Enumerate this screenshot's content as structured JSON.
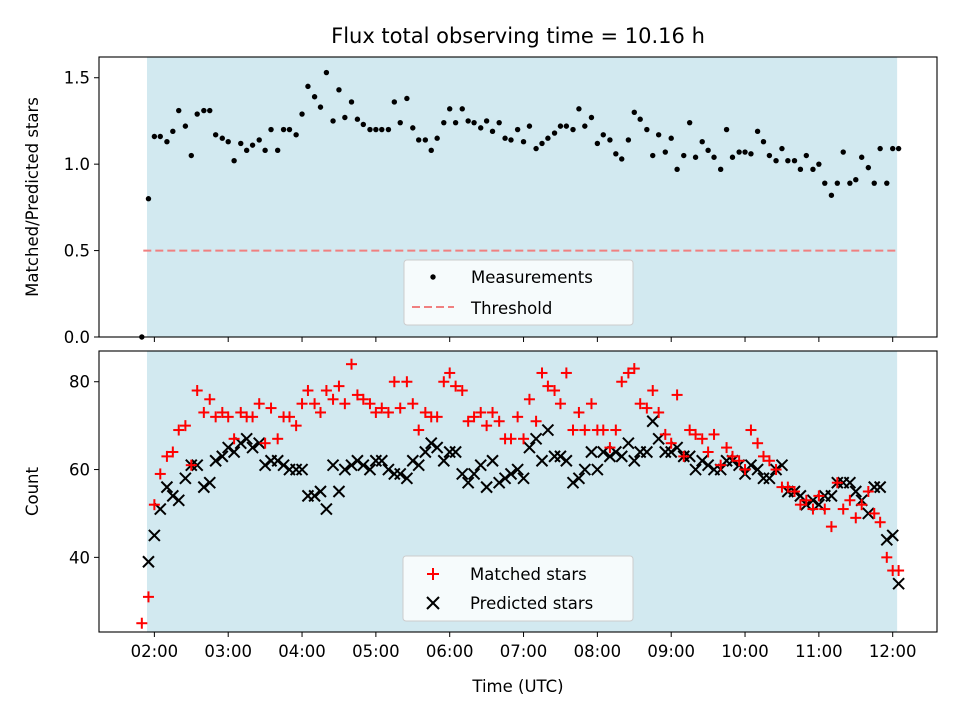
{
  "colors": {
    "shade": "#d2e9f0",
    "measurement": "#000000",
    "threshold": "#f08080",
    "matched": "#ff0000",
    "predicted": "#000000"
  },
  "chart_data": [
    {
      "type": "scatter",
      "title": "Flux total observing time = 10.16 h",
      "ylabel": "Matched/Predicted stars",
      "xlabel": "",
      "ylim": [
        0,
        1.62
      ],
      "xlim": [
        1.25,
        12.6
      ],
      "yticks": [
        0.0,
        0.5,
        1.0,
        1.5
      ],
      "ytick_labels": [
        "0.0",
        "0.5",
        "1.0",
        "1.5"
      ],
      "shaded_span": [
        1.9,
        12.06
      ],
      "threshold": {
        "name": "Threshold",
        "value": 0.5,
        "x": [
          1.85,
          12.05
        ]
      },
      "legend": [
        "Measurements",
        "Threshold"
      ],
      "legend_position": "lower center",
      "series": [
        {
          "name": "Measurements",
          "x": [
            1.83,
            1.92,
            2.0,
            2.08,
            2.17,
            2.25,
            2.33,
            2.42,
            2.5,
            2.58,
            2.67,
            2.75,
            2.83,
            2.92,
            3.0,
            3.08,
            3.17,
            3.25,
            3.33,
            3.42,
            3.5,
            3.58,
            3.67,
            3.75,
            3.83,
            3.92,
            4.0,
            4.08,
            4.17,
            4.25,
            4.33,
            4.42,
            4.5,
            4.58,
            4.67,
            4.75,
            4.83,
            4.92,
            5.0,
            5.08,
            5.17,
            5.25,
            5.33,
            5.42,
            5.5,
            5.58,
            5.67,
            5.75,
            5.83,
            5.92,
            6.0,
            6.08,
            6.17,
            6.25,
            6.33,
            6.42,
            6.5,
            6.58,
            6.67,
            6.75,
            6.83,
            6.92,
            7.0,
            7.08,
            7.17,
            7.25,
            7.33,
            7.42,
            7.5,
            7.58,
            7.67,
            7.75,
            7.83,
            7.92,
            8.0,
            8.08,
            8.17,
            8.25,
            8.33,
            8.42,
            8.5,
            8.58,
            8.67,
            8.75,
            8.83,
            8.92,
            9.0,
            9.08,
            9.17,
            9.25,
            9.33,
            9.42,
            9.5,
            9.58,
            9.67,
            9.75,
            9.83,
            9.92,
            10.0,
            10.08,
            10.17,
            10.25,
            10.33,
            10.42,
            10.5,
            10.58,
            10.67,
            10.75,
            10.83,
            10.92,
            11.0,
            11.08,
            11.17,
            11.25,
            11.33,
            11.42,
            11.5,
            11.58,
            11.67,
            11.75,
            11.83,
            11.92,
            12.0,
            12.08
          ],
          "values": [
            0.0,
            0.8,
            1.16,
            1.16,
            1.13,
            1.19,
            1.31,
            1.22,
            1.05,
            1.29,
            1.31,
            1.31,
            1.17,
            1.15,
            1.13,
            1.02,
            1.12,
            1.08,
            1.11,
            1.14,
            1.08,
            1.2,
            1.08,
            1.2,
            1.2,
            1.17,
            1.29,
            1.45,
            1.39,
            1.33,
            1.53,
            1.25,
            1.43,
            1.27,
            1.36,
            1.26,
            1.23,
            1.2,
            1.2,
            1.2,
            1.2,
            1.36,
            1.24,
            1.38,
            1.21,
            1.14,
            1.14,
            1.08,
            1.15,
            1.24,
            1.32,
            1.24,
            1.32,
            1.25,
            1.24,
            1.21,
            1.25,
            1.19,
            1.24,
            1.15,
            1.14,
            1.2,
            1.13,
            1.22,
            1.09,
            1.12,
            1.15,
            1.18,
            1.22,
            1.22,
            1.2,
            1.32,
            1.22,
            1.27,
            1.12,
            1.17,
            1.14,
            1.06,
            1.03,
            1.14,
            1.3,
            1.26,
            1.2,
            1.05,
            1.17,
            1.07,
            1.15,
            0.97,
            1.05,
            1.24,
            1.04,
            1.13,
            1.08,
            1.04,
            0.97,
            1.2,
            1.04,
            1.07,
            1.07,
            1.06,
            1.19,
            1.13,
            1.05,
            1.02,
            1.09,
            1.02,
            1.02,
            0.97,
            1.05,
            0.97,
            1.0,
            0.89,
            0.82,
            0.89,
            1.07,
            0.89,
            0.91,
            1.04,
            0.98,
            0.89,
            1.09,
            0.89,
            1.09,
            1.09
          ]
        }
      ]
    },
    {
      "type": "scatter",
      "title": "",
      "ylabel": "Count",
      "xlabel": "Time (UTC)",
      "ylim": [
        23,
        87
      ],
      "xlim": [
        1.25,
        12.6
      ],
      "yticks": [
        40,
        60,
        80
      ],
      "ytick_labels": [
        "40",
        "60",
        "80"
      ],
      "xticks": [
        2,
        3,
        4,
        5,
        6,
        7,
        8,
        9,
        10,
        11,
        12
      ],
      "xtick_labels": [
        "02:00",
        "03:00",
        "04:00",
        "05:00",
        "06:00",
        "07:00",
        "08:00",
        "09:00",
        "10:00",
        "11:00",
        "12:00"
      ],
      "shaded_span": [
        1.9,
        12.06
      ],
      "legend": [
        "Matched stars",
        "Predicted stars"
      ],
      "legend_position": "lower center",
      "series": [
        {
          "name": "Matched stars",
          "marker": "plus",
          "x": [
            1.83,
            1.92,
            2.0,
            2.08,
            2.17,
            2.25,
            2.33,
            2.42,
            2.5,
            2.58,
            2.67,
            2.75,
            2.83,
            2.92,
            3.0,
            3.08,
            3.17,
            3.25,
            3.33,
            3.42,
            3.5,
            3.58,
            3.67,
            3.75,
            3.83,
            3.92,
            4.0,
            4.08,
            4.17,
            4.25,
            4.33,
            4.42,
            4.5,
            4.58,
            4.67,
            4.75,
            4.83,
            4.92,
            5.0,
            5.08,
            5.17,
            5.25,
            5.33,
            5.42,
            5.5,
            5.58,
            5.67,
            5.75,
            5.83,
            5.92,
            6.0,
            6.08,
            6.17,
            6.25,
            6.33,
            6.42,
            6.5,
            6.58,
            6.67,
            6.75,
            6.83,
            6.92,
            7.0,
            7.08,
            7.17,
            7.25,
            7.33,
            7.42,
            7.5,
            7.58,
            7.67,
            7.75,
            7.83,
            7.92,
            8.0,
            8.08,
            8.17,
            8.25,
            8.33,
            8.42,
            8.5,
            8.58,
            8.67,
            8.75,
            8.83,
            8.92,
            9.0,
            9.08,
            9.17,
            9.25,
            9.33,
            9.42,
            9.5,
            9.58,
            9.67,
            9.75,
            9.83,
            9.92,
            10.0,
            10.08,
            10.17,
            10.25,
            10.33,
            10.42,
            10.5,
            10.58,
            10.67,
            10.75,
            10.83,
            10.92,
            11.0,
            11.08,
            11.17,
            11.25,
            11.33,
            11.42,
            11.5,
            11.58,
            11.67,
            11.75,
            11.83,
            11.92,
            12.0,
            12.08
          ],
          "values": [
            25,
            31,
            52,
            59,
            63,
            64,
            69,
            70,
            61,
            78,
            73,
            76,
            72,
            73,
            72,
            67,
            73,
            72,
            72,
            75,
            66,
            74,
            67,
            72,
            72,
            70,
            75,
            78,
            75,
            73,
            78,
            76,
            79,
            75,
            84,
            77,
            76,
            75,
            73,
            74,
            73,
            80,
            74,
            80,
            75,
            69,
            73,
            72,
            72,
            80,
            82,
            79,
            78,
            71,
            72,
            73,
            70,
            73,
            71,
            67,
            67,
            72,
            67,
            76,
            71,
            82,
            79,
            78,
            75,
            82,
            69,
            73,
            69,
            75,
            69,
            69,
            65,
            69,
            80,
            82,
            83,
            75,
            74,
            78,
            73,
            68,
            66,
            77,
            63,
            69,
            68,
            67,
            64,
            68,
            61,
            65,
            63,
            62,
            60,
            69,
            66,
            63,
            62,
            60,
            56,
            56,
            55,
            52,
            53,
            51,
            54,
            51,
            47,
            57,
            51,
            53,
            49,
            52,
            55,
            50,
            48,
            40,
            37,
            37
          ]
        },
        {
          "name": "Predicted stars",
          "marker": "x",
          "x": [
            1.92,
            2.0,
            2.08,
            2.17,
            2.25,
            2.33,
            2.42,
            2.5,
            2.58,
            2.67,
            2.75,
            2.83,
            2.92,
            3.0,
            3.08,
            3.17,
            3.25,
            3.33,
            3.42,
            3.5,
            3.58,
            3.67,
            3.75,
            3.83,
            3.92,
            4.0,
            4.08,
            4.17,
            4.25,
            4.33,
            4.42,
            4.5,
            4.58,
            4.67,
            4.75,
            4.83,
            4.92,
            5.0,
            5.08,
            5.17,
            5.25,
            5.33,
            5.42,
            5.5,
            5.58,
            5.67,
            5.75,
            5.83,
            5.92,
            6.0,
            6.08,
            6.17,
            6.25,
            6.33,
            6.42,
            6.5,
            6.58,
            6.67,
            6.75,
            6.83,
            6.92,
            7.0,
            7.08,
            7.17,
            7.25,
            7.33,
            7.42,
            7.5,
            7.58,
            7.67,
            7.75,
            7.83,
            7.92,
            8.0,
            8.08,
            8.17,
            8.25,
            8.33,
            8.42,
            8.5,
            8.58,
            8.67,
            8.75,
            8.83,
            8.92,
            9.0,
            9.08,
            9.17,
            9.25,
            9.33,
            9.42,
            9.5,
            9.58,
            9.67,
            9.75,
            9.83,
            9.92,
            10.0,
            10.08,
            10.17,
            10.25,
            10.33,
            10.42,
            10.5,
            10.58,
            10.67,
            10.75,
            10.83,
            10.92,
            11.0,
            11.08,
            11.17,
            11.25,
            11.33,
            11.42,
            11.5,
            11.58,
            11.67,
            11.75,
            11.83,
            11.92,
            12.0,
            12.08
          ],
          "values": [
            39,
            45,
            51,
            56,
            54,
            53,
            58,
            61,
            61,
            56,
            57,
            62,
            63,
            65,
            64,
            66,
            67,
            65,
            66,
            61,
            62,
            62,
            61,
            60,
            60,
            60,
            54,
            54,
            55,
            51,
            61,
            55,
            60,
            61,
            62,
            61,
            60,
            62,
            62,
            60,
            59,
            59,
            58,
            62,
            61,
            64,
            66,
            65,
            62,
            64,
            64,
            59,
            57,
            59,
            61,
            56,
            62,
            57,
            58,
            59,
            60,
            58,
            65,
            67,
            62,
            69,
            63,
            63,
            62,
            57,
            58,
            60,
            64,
            60,
            64,
            63,
            64,
            63,
            66,
            62,
            64,
            64,
            71,
            67,
            64,
            64,
            65,
            63,
            63,
            60,
            62,
            61,
            60,
            60,
            62,
            62,
            61,
            59,
            61,
            60,
            58,
            58,
            60,
            61,
            55,
            55,
            54,
            52,
            53,
            52,
            54,
            54,
            57,
            57,
            57,
            55,
            53,
            50,
            56,
            56,
            44,
            45,
            34
          ]
        }
      ]
    }
  ]
}
